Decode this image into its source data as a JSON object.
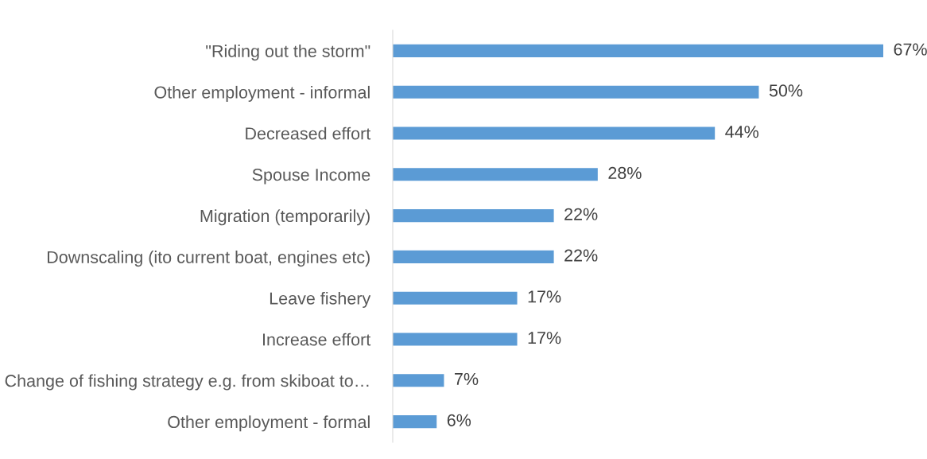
{
  "chart_data": {
    "type": "bar",
    "orientation": "horizontal",
    "categories": [
      "\"Riding out the storm\"",
      "Other employment - informal",
      "Decreased effort",
      "Spouse Income",
      "Migration (temporarily)",
      "Downscaling (ito current boat, engines etc)",
      "Leave fishery",
      "Increase effort",
      "Change of fishing strategy e.g. from skiboat to…",
      "Other employment - formal"
    ],
    "values": [
      67,
      50,
      44,
      28,
      22,
      22,
      17,
      17,
      7,
      6
    ],
    "value_labels": [
      "67%",
      "50%",
      "44%",
      "28%",
      "22%",
      "22%",
      "17%",
      "17%",
      "7%",
      "6%"
    ],
    "color": "#5b9bd5",
    "tick_labels": "y",
    "grid": false,
    "legend": false
  }
}
